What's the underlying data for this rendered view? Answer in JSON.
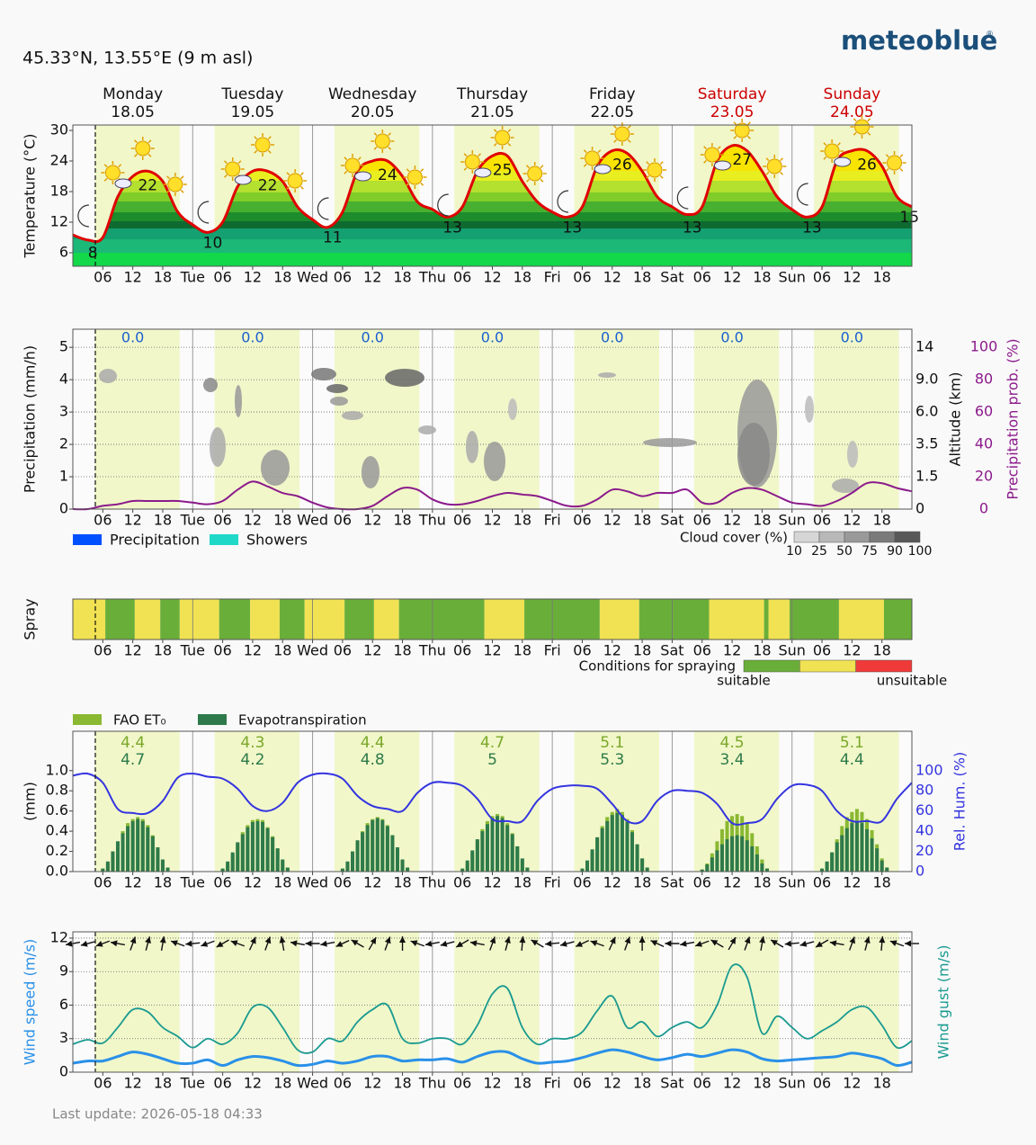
{
  "header": {
    "location": "45.33°N, 13.55°E (9 m asl)",
    "logo": "meteoblue",
    "logo_mark": "®",
    "last_update": "Last update: 2026-05-18 04:33"
  },
  "days": [
    {
      "name": "Monday",
      "date": "18.05",
      "color": "#111111"
    },
    {
      "name": "Tuesday",
      "date": "19.05",
      "color": "#111111"
    },
    {
      "name": "Wednesday",
      "date": "20.05",
      "color": "#111111"
    },
    {
      "name": "Thursday",
      "date": "21.05",
      "color": "#111111"
    },
    {
      "name": "Friday",
      "date": "22.05",
      "color": "#111111"
    },
    {
      "name": "Saturday",
      "date": "23.05",
      "color": "#cc0000"
    },
    {
      "name": "Sunday",
      "date": "24.05",
      "color": "#cc0000"
    }
  ],
  "time_axis": {
    "hours": [
      0,
      3,
      6,
      9,
      12,
      15,
      18,
      21,
      24,
      27,
      30,
      33,
      36,
      39,
      42,
      45,
      48,
      51,
      54,
      57,
      60,
      63,
      66,
      69,
      72,
      75,
      78,
      81,
      84,
      87,
      90,
      93,
      96,
      99,
      102,
      105,
      108,
      111,
      114,
      117,
      120,
      123,
      126,
      129,
      132,
      135,
      138,
      141,
      144,
      147,
      150,
      153,
      156,
      159,
      162,
      165,
      168
    ],
    "ticks": [
      {
        "value": 6,
        "label": "06"
      },
      12,
      18,
      {
        "value": 24,
        "label": "Tue"
      },
      {
        "value": 30,
        "label": "06"
      },
      {
        "value": 36,
        "label": "12"
      },
      {
        "value": 42,
        "label": "18"
      },
      {
        "value": 48,
        "label": "Wed"
      },
      {
        "value": 54,
        "label": "06"
      },
      {
        "value": 60,
        "label": "12"
      },
      {
        "value": 66,
        "label": "18"
      },
      {
        "value": 72,
        "label": "Thu"
      },
      {
        "value": 78,
        "label": "06"
      },
      {
        "value": 84,
        "label": "12"
      },
      {
        "value": 90,
        "label": "18"
      },
      {
        "value": 96,
        "label": "Fri"
      },
      {
        "value": 102,
        "label": "06"
      },
      {
        "value": 108,
        "label": "12"
      },
      {
        "value": 114,
        "label": "18"
      },
      {
        "value": 120,
        "label": "Sat"
      },
      {
        "value": 126,
        "label": "06"
      },
      {
        "value": 132,
        "label": "12"
      },
      {
        "value": 138,
        "label": "18"
      },
      {
        "value": 144,
        "label": "Sun"
      },
      {
        "value": 150,
        "label": "06"
      },
      {
        "value": 156,
        "label": "12"
      },
      {
        "value": 162,
        "label": "18"
      }
    ]
  },
  "chart_data": [
    {
      "type": "line",
      "ylabel": "Temperature (°C)",
      "ylim": [
        3.35,
        31.06
      ],
      "yticks": [
        6,
        12,
        18,
        24,
        30
      ],
      "grid": false,
      "color": "#e00000",
      "values": [
        9.5,
        8.5,
        9,
        17,
        21,
        22,
        20,
        14,
        11.5,
        10,
        12,
        19,
        22,
        22,
        20,
        15,
        12.5,
        11,
        14,
        22,
        24,
        24,
        21,
        16,
        14.5,
        13,
        15,
        22,
        25,
        25,
        20,
        16,
        14,
        13,
        15,
        23,
        26,
        25.5,
        22,
        17,
        15,
        13.5,
        15,
        24,
        27,
        26,
        22,
        17,
        14.5,
        13,
        15,
        24,
        26,
        26,
        23,
        17,
        15
      ],
      "extremes": {
        "x": [
          4,
          15,
          28,
          39,
          52,
          63,
          76,
          86,
          100,
          110,
          124,
          134,
          148,
          159,
          167.5
        ],
        "values": [
          8,
          22,
          10,
          22,
          11,
          24,
          13,
          25,
          13,
          26,
          13,
          27,
          13,
          26,
          15
        ]
      }
    },
    {
      "type": "line",
      "ylabel": "Precipitation (mm/h)",
      "y3label": "Altitude (km)",
      "y2label": "Precipitation prob. (%)",
      "grid": true,
      "ylim": [
        0,
        5.56
      ],
      "yticks": [
        0,
        1,
        2,
        3,
        4,
        5
      ],
      "y2lim": [
        0,
        111.2
      ],
      "y2ticks": [
        0,
        20,
        40,
        60,
        80,
        100
      ],
      "y2color": "#8b1a8b",
      "altitude_ticks": [
        0,
        1.5,
        3.5,
        {
          "value": 6,
          "label": "6.0"
        },
        {
          "value": 9,
          "label": "9.0"
        },
        14
      ],
      "daily_sum": {
        "color": "#1a5fd0",
        "values": [
          0,
          0,
          0,
          0,
          0,
          0,
          0
        ],
        "value_labels": [
          "0.0",
          "0.0",
          "0.0",
          "0.0",
          "0.0",
          "0.0",
          "0.0"
        ]
      },
      "probability": {
        "axis": "y2",
        "color": "#8b1a8b",
        "values": [
          0,
          0,
          2,
          3,
          5,
          5,
          5,
          5,
          4,
          3,
          5,
          12,
          17,
          14,
          10,
          8,
          4,
          1,
          0,
          0,
          2,
          8,
          13,
          12,
          6,
          3,
          3,
          5,
          8,
          10,
          9,
          8,
          5,
          2,
          2,
          6,
          12,
          11,
          8,
          10,
          10,
          12,
          4,
          4,
          10,
          13,
          12,
          8,
          4,
          3,
          2,
          5,
          10,
          16,
          16,
          13,
          11
        ]
      },
      "legend": [
        {
          "name": "Precipitation",
          "color": "#0050ff"
        },
        {
          "name": "Showers",
          "color": "#20d8c8"
        }
      ],
      "cloud_cover_legend": {
        "title": "Cloud cover (%)",
        "levels": [
          10,
          25,
          50,
          75,
          90,
          100
        ],
        "colors": [
          "#d6d6d6",
          "#b8b8b8",
          "#999999",
          "#7a7a7a",
          "#585858"
        ]
      }
    },
    {
      "type": "timeline",
      "ylabel": "Spray",
      "segments": [
        {
          "start": 0,
          "end": 6.5,
          "level": 1
        },
        {
          "start": 6.5,
          "end": 12.4,
          "level": 0
        },
        {
          "start": 12.4,
          "end": 17.5,
          "level": 1
        },
        {
          "start": 17.5,
          "end": 21.4,
          "level": 0
        },
        {
          "start": 21.4,
          "end": 29.3,
          "level": 1
        },
        {
          "start": 29.3,
          "end": 35.5,
          "level": 0
        },
        {
          "start": 35.5,
          "end": 41.4,
          "level": 1
        },
        {
          "start": 41.4,
          "end": 46.4,
          "level": 0
        },
        {
          "start": 46.4,
          "end": 54.4,
          "level": 1
        },
        {
          "start": 54.4,
          "end": 60.3,
          "level": 0
        },
        {
          "start": 60.3,
          "end": 65.3,
          "level": 1
        },
        {
          "start": 65.3,
          "end": 82.4,
          "level": 0
        },
        {
          "start": 82.4,
          "end": 90.4,
          "level": 1
        },
        {
          "start": 90.4,
          "end": 105.5,
          "level": 0
        },
        {
          "start": 105.5,
          "end": 113.4,
          "level": 1
        },
        {
          "start": 113.4,
          "end": 127.4,
          "level": 0
        },
        {
          "start": 127.4,
          "end": 138.4,
          "level": 1
        },
        {
          "start": 138.4,
          "end": 139.3,
          "level": 0
        },
        {
          "start": 139.3,
          "end": 143.5,
          "level": 1
        },
        {
          "start": 143.5,
          "end": 153.4,
          "level": 0
        },
        {
          "start": 153.4,
          "end": 162.4,
          "level": 1
        },
        {
          "start": 162.4,
          "end": 168,
          "level": 0
        }
      ],
      "legend": {
        "title": "Conditions for spraying",
        "colors": [
          "#6aae3a",
          "#f0e252",
          "#f03a3a"
        ],
        "labels": [
          "suitable",
          "unsuitable"
        ]
      }
    },
    {
      "type": "bar",
      "ylabel": "(mm)",
      "y2label": "Rel. Hum. (%)",
      "grid": false,
      "ylim": [
        0,
        1.39
      ],
      "yticks": [
        {
          "value": 0,
          "label": "0.0"
        },
        0.2,
        0.4,
        0.6,
        0.8,
        {
          "value": 1,
          "label": "1.0"
        }
      ],
      "y2lim": [
        0,
        139
      ],
      "y2ticks": [
        0,
        20,
        40,
        60,
        80,
        100
      ],
      "y2color": "#3434e0",
      "bar_hours": [
        6,
        7,
        8,
        9,
        10,
        11,
        12,
        13,
        14,
        15,
        16,
        17,
        18,
        19
      ],
      "series": [
        {
          "name": "FAO ET₀",
          "color": "#8ab832",
          "daily_sum": [
            4.4,
            4.3,
            4.4,
            4.7,
            5.1,
            4.5,
            5.1
          ],
          "values": [
            [
              0.02,
              0.08,
              0.17,
              0.29,
              0.4,
              0.48,
              0.52,
              0.54,
              0.52,
              0.46,
              0.36,
              0.24,
              0.11,
              0.03
            ],
            [
              0.02,
              0.07,
              0.17,
              0.28,
              0.39,
              0.46,
              0.51,
              0.52,
              0.51,
              0.44,
              0.35,
              0.23,
              0.11,
              0.03
            ],
            [
              0.02,
              0.08,
              0.17,
              0.29,
              0.4,
              0.48,
              0.52,
              0.54,
              0.52,
              0.46,
              0.36,
              0.24,
              0.11,
              0.03
            ],
            [
              0.02,
              0.08,
              0.18,
              0.3,
              0.42,
              0.5,
              0.55,
              0.57,
              0.55,
              0.48,
              0.38,
              0.25,
              0.12,
              0.03
            ],
            [
              0.02,
              0.09,
              0.19,
              0.32,
              0.45,
              0.54,
              0.59,
              0.62,
              0.59,
              0.52,
              0.41,
              0.27,
              0.13,
              0.03
            ],
            [
              0.02,
              0.08,
              0.18,
              0.3,
              0.42,
              0.5,
              0.55,
              0.57,
              0.55,
              0.48,
              0.38,
              0.25,
              0.12,
              0.03
            ],
            [
              0.02,
              0.09,
              0.19,
              0.32,
              0.45,
              0.54,
              0.59,
              0.62,
              0.59,
              0.52,
              0.41,
              0.27,
              0.13,
              0.03
            ]
          ]
        },
        {
          "name": "Evapotranspiration",
          "color": "#2e7a4a",
          "daily_sum": [
            4.7,
            4.2,
            4.8,
            5.0,
            5.3,
            3.4,
            4.4
          ],
          "values": [
            [
              0.03,
              0.1,
              0.2,
              0.3,
              0.38,
              0.45,
              0.5,
              0.52,
              0.5,
              0.44,
              0.35,
              0.24,
              0.12,
              0.04
            ],
            [
              0.03,
              0.1,
              0.19,
              0.29,
              0.37,
              0.44,
              0.49,
              0.5,
              0.49,
              0.43,
              0.34,
              0.23,
              0.12,
              0.04
            ],
            [
              0.03,
              0.1,
              0.2,
              0.31,
              0.39,
              0.46,
              0.51,
              0.53,
              0.51,
              0.45,
              0.36,
              0.24,
              0.12,
              0.04
            ],
            [
              0.03,
              0.11,
              0.21,
              0.32,
              0.4,
              0.47,
              0.53,
              0.55,
              0.53,
              0.46,
              0.37,
              0.25,
              0.13,
              0.04
            ],
            [
              0.03,
              0.11,
              0.22,
              0.34,
              0.43,
              0.5,
              0.56,
              0.58,
              0.56,
              0.49,
              0.39,
              0.27,
              0.13,
              0.04
            ],
            [
              0.02,
              0.07,
              0.14,
              0.21,
              0.27,
              0.32,
              0.35,
              0.36,
              0.35,
              0.31,
              0.25,
              0.17,
              0.08,
              0.03
            ],
            [
              0.03,
              0.1,
              0.19,
              0.29,
              0.36,
              0.43,
              0.48,
              0.49,
              0.48,
              0.42,
              0.33,
              0.23,
              0.11,
              0.04
            ]
          ]
        }
      ],
      "humidity": {
        "axis": "y2",
        "color": "#3434e0",
        "values": [
          95,
          97,
          88,
          62,
          58,
          58,
          70,
          93,
          97,
          94,
          92,
          82,
          65,
          60,
          68,
          88,
          96,
          97,
          92,
          75,
          65,
          62,
          60,
          78,
          88,
          88,
          85,
          72,
          52,
          50,
          50,
          70,
          82,
          85,
          85,
          82,
          67,
          50,
          50,
          70,
          80,
          80,
          78,
          67,
          48,
          48,
          52,
          72,
          85,
          86,
          80,
          60,
          50,
          50,
          50,
          72,
          88
        ]
      }
    },
    {
      "type": "line",
      "ylabel": "Wind speed (m/s)",
      "y2label": "Wind gust (m/s)",
      "grid": true,
      "ylim": [
        0,
        12.56
      ],
      "yticks": [
        0,
        3,
        6,
        9,
        12
      ],
      "ylabel_color": "#2a90e8",
      "y2label_color": "#1a9a90",
      "series": [
        {
          "color": "#2a90e8",
          "values": [
            0.8,
            1.0,
            1.0,
            1.4,
            1.8,
            1.6,
            1.2,
            0.8,
            0.8,
            1.1,
            0.6,
            1.1,
            1.4,
            1.3,
            1.0,
            0.6,
            0.7,
            1.0,
            0.8,
            1.0,
            1.4,
            1.4,
            1.0,
            1.1,
            1.1,
            1.2,
            0.9,
            1.4,
            1.8,
            1.8,
            1.2,
            0.8,
            0.9,
            1.0,
            1.3,
            1.7,
            2.0,
            1.8,
            1.4,
            1.1,
            1.3,
            1.6,
            1.4,
            1.7,
            2.0,
            1.8,
            1.2,
            1.0,
            1.1,
            1.2,
            1.3,
            1.4,
            1.7,
            1.5,
            1.2,
            0.6,
            0.9
          ]
        },
        {
          "color": "#1a9a90",
          "values": [
            2.5,
            2.9,
            2.6,
            4.0,
            5.6,
            5.4,
            4.0,
            3.2,
            2.2,
            3.0,
            2.5,
            3.5,
            5.8,
            5.8,
            4.0,
            2.0,
            1.8,
            3.0,
            2.8,
            4.5,
            5.6,
            6.0,
            3.0,
            2.6,
            3.0,
            3.0,
            2.5,
            4.2,
            7.0,
            7.5,
            4.0,
            2.5,
            3.0,
            3.0,
            3.6,
            5.5,
            6.8,
            4.0,
            4.5,
            3.2,
            4.0,
            4.5,
            4.0,
            6.0,
            9.5,
            8.5,
            3.5,
            5.0,
            4.0,
            3.0,
            3.7,
            4.5,
            5.6,
            5.8,
            4.2,
            2.2,
            2.8
          ]
        }
      ],
      "wind_direction": [
        80,
        75,
        70,
        100,
        200,
        195,
        190,
        110,
        85,
        70,
        60,
        110,
        205,
        200,
        170,
        100,
        90,
        80,
        65,
        120,
        210,
        200,
        180,
        110,
        80,
        75,
        60,
        100,
        200,
        195,
        185,
        120,
        85,
        75,
        65,
        110,
        205,
        200,
        180,
        115,
        90,
        80,
        70,
        120,
        210,
        200,
        190,
        120,
        85,
        75,
        60,
        100,
        200,
        195,
        185,
        110,
        90
      ]
    }
  ]
}
